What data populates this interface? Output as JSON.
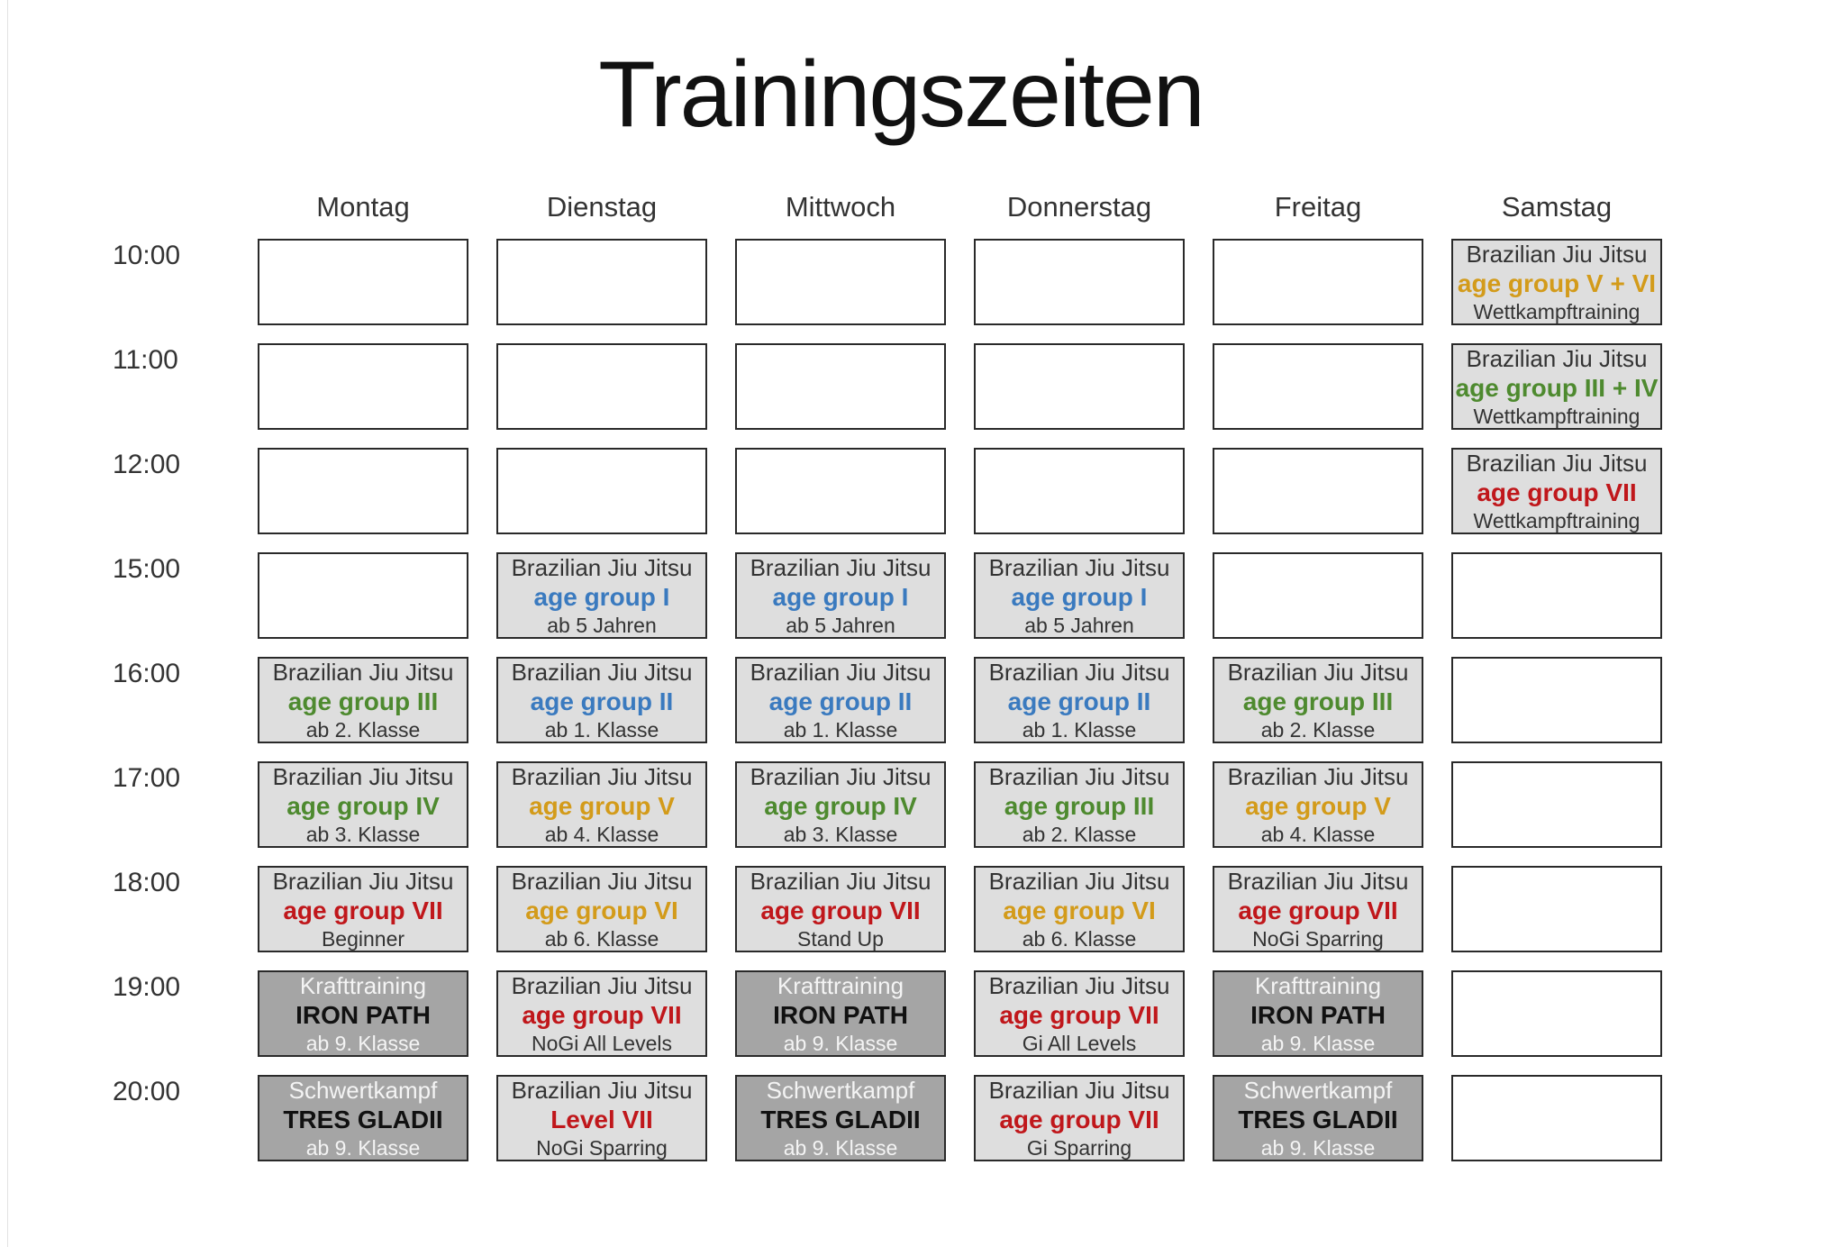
{
  "title": "Trainingszeiten",
  "days": [
    "Montag",
    "Dienstag",
    "Mittwoch",
    "Donnerstag",
    "Freitag",
    "Samstag"
  ],
  "times": [
    "10:00",
    "11:00",
    "12:00",
    "15:00",
    "16:00",
    "17:00",
    "18:00",
    "19:00",
    "20:00"
  ],
  "colors": {
    "blue": "#3a7abf",
    "green": "#4e8a2f",
    "gold": "#d39b1a",
    "red": "#c0171b",
    "black": "#111111"
  },
  "grid": [
    [
      null,
      null,
      null,
      null,
      null,
      {
        "style": "light",
        "line1": "Brazilian Jiu Jitsu",
        "line2": "age group V + VI",
        "color": "gold",
        "line3": "Wettkampftraining"
      }
    ],
    [
      null,
      null,
      null,
      null,
      null,
      {
        "style": "light",
        "line1": "Brazilian Jiu Jitsu",
        "line2": "age group III + IV",
        "color": "green",
        "line3": "Wettkampftraining"
      }
    ],
    [
      null,
      null,
      null,
      null,
      null,
      {
        "style": "light",
        "line1": "Brazilian Jiu Jitsu",
        "line2": "age group VII",
        "color": "red",
        "line3": "Wettkampftraining"
      }
    ],
    [
      null,
      {
        "style": "light",
        "line1": "Brazilian Jiu Jitsu",
        "line2": "age group I",
        "color": "blue",
        "line3": "ab 5 Jahren"
      },
      {
        "style": "light",
        "line1": "Brazilian Jiu Jitsu",
        "line2": "age group I",
        "color": "blue",
        "line3": "ab 5 Jahren"
      },
      {
        "style": "light",
        "line1": "Brazilian Jiu Jitsu",
        "line2": "age group I",
        "color": "blue",
        "line3": "ab 5 Jahren"
      },
      null,
      null
    ],
    [
      {
        "style": "light",
        "line1": "Brazilian Jiu Jitsu",
        "line2": "age group III",
        "color": "green",
        "line3": "ab 2. Klasse"
      },
      {
        "style": "light",
        "line1": "Brazilian Jiu Jitsu",
        "line2": "age group II",
        "color": "blue",
        "line3": "ab 1. Klasse"
      },
      {
        "style": "light",
        "line1": "Brazilian Jiu Jitsu",
        "line2": "age group II",
        "color": "blue",
        "line3": "ab 1. Klasse"
      },
      {
        "style": "light",
        "line1": "Brazilian Jiu Jitsu",
        "line2": "age group II",
        "color": "blue",
        "line3": "ab 1. Klasse"
      },
      {
        "style": "light",
        "line1": "Brazilian Jiu Jitsu",
        "line2": "age group III",
        "color": "green",
        "line3": "ab 2. Klasse"
      },
      null
    ],
    [
      {
        "style": "light",
        "line1": "Brazilian Jiu Jitsu",
        "line2": "age group IV",
        "color": "green",
        "line3": "ab 3. Klasse"
      },
      {
        "style": "light",
        "line1": "Brazilian Jiu Jitsu",
        "line2": "age group V",
        "color": "gold",
        "line3": "ab 4. Klasse"
      },
      {
        "style": "light",
        "line1": "Brazilian Jiu Jitsu",
        "line2": "age group IV",
        "color": "green",
        "line3": "ab 3. Klasse"
      },
      {
        "style": "light",
        "line1": "Brazilian Jiu Jitsu",
        "line2": "age group III",
        "color": "green",
        "line3": "ab 2. Klasse"
      },
      {
        "style": "light",
        "line1": "Brazilian Jiu Jitsu",
        "line2": "age group V",
        "color": "gold",
        "line3": "ab 4. Klasse"
      },
      null
    ],
    [
      {
        "style": "light",
        "line1": "Brazilian Jiu Jitsu",
        "line2": "age group VII",
        "color": "red",
        "line3": "Beginner"
      },
      {
        "style": "light",
        "line1": "Brazilian Jiu Jitsu",
        "line2": "age group VI",
        "color": "gold",
        "line3": "ab 6. Klasse"
      },
      {
        "style": "light",
        "line1": "Brazilian Jiu Jitsu",
        "line2": "age group VII",
        "color": "red",
        "line3": "Stand Up"
      },
      {
        "style": "light",
        "line1": "Brazilian Jiu Jitsu",
        "line2": "age group VI",
        "color": "gold",
        "line3": "ab 6. Klasse"
      },
      {
        "style": "light",
        "line1": "Brazilian Jiu Jitsu",
        "line2": "age group VII",
        "color": "red",
        "line3": "NoGi Sparring"
      },
      null
    ],
    [
      {
        "style": "dark",
        "line1": "Krafttraining",
        "line2": "IRON PATH",
        "color": "black",
        "line3": "ab 9. Klasse"
      },
      {
        "style": "light",
        "line1": "Brazilian Jiu Jitsu",
        "line2": "age group VII",
        "color": "red",
        "line3": "NoGi All Levels"
      },
      {
        "style": "dark",
        "line1": "Krafttraining",
        "line2": "IRON PATH",
        "color": "black",
        "line3": "ab 9. Klasse"
      },
      {
        "style": "light",
        "line1": "Brazilian Jiu Jitsu",
        "line2": "age group VII",
        "color": "red",
        "line3": "Gi All Levels"
      },
      {
        "style": "dark",
        "line1": "Krafttraining",
        "line2": "IRON PATH",
        "color": "black",
        "line3": "ab 9. Klasse"
      },
      null
    ],
    [
      {
        "style": "dark",
        "line1": "Schwertkampf",
        "line2": "TRES GLADII",
        "color": "black",
        "line3": "ab 9. Klasse"
      },
      {
        "style": "light",
        "line1": "Brazilian Jiu Jitsu",
        "line2": "Level VII",
        "color": "red",
        "line3": "NoGi Sparring"
      },
      {
        "style": "dark",
        "line1": "Schwertkampf",
        "line2": "TRES GLADII",
        "color": "black",
        "line3": "ab 9. Klasse"
      },
      {
        "style": "light",
        "line1": "Brazilian Jiu Jitsu",
        "line2": "age group VII",
        "color": "red",
        "line3": "Gi Sparring"
      },
      {
        "style": "dark",
        "line1": "Schwertkampf",
        "line2": "TRES GLADII",
        "color": "black",
        "line3": "ab 9. Klasse"
      },
      null
    ]
  ]
}
